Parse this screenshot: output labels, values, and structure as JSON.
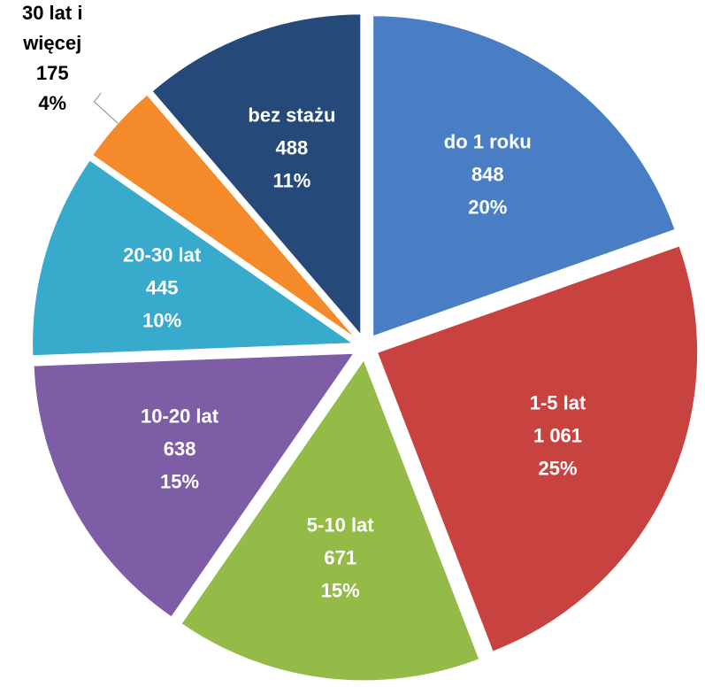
{
  "chart_data": {
    "type": "pie",
    "categories": [
      "do 1 roku",
      "1-5 lat",
      "5-10 lat",
      "10-20 lat",
      "20-30 lat",
      "30 lat i więcej",
      "bez stażu"
    ],
    "values": [
      848,
      1061,
      671,
      638,
      445,
      175,
      488
    ],
    "value_labels": [
      "848",
      "1 061",
      "671",
      "638",
      "445",
      "175",
      "488"
    ],
    "percent_labels": [
      "20%",
      "25%",
      "15%",
      "15%",
      "10%",
      "4%",
      "11%"
    ],
    "colors": [
      "#4a7ec4",
      "#c8423f",
      "#94ba48",
      "#7d5ea6",
      "#38aacb",
      "#f58a2a",
      "#254a7a"
    ]
  }
}
